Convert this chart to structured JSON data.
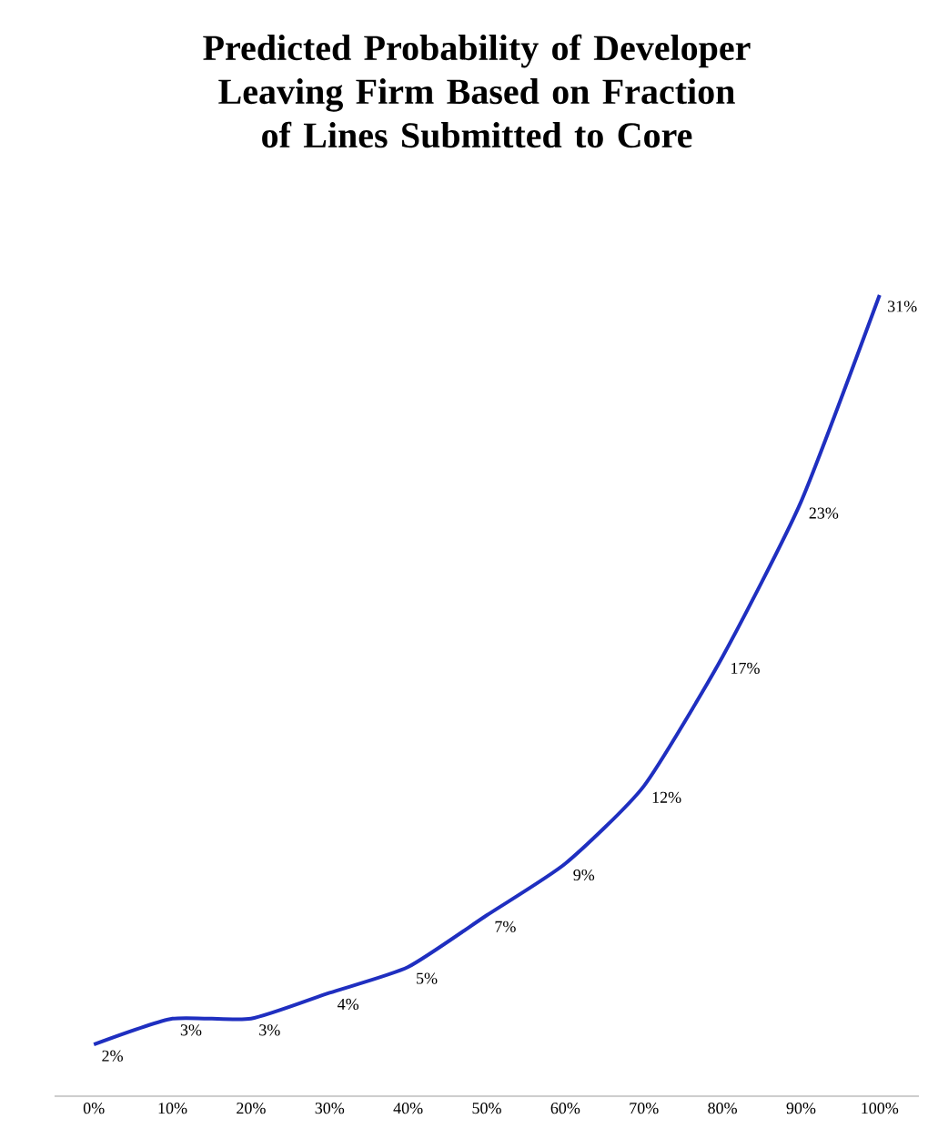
{
  "chart_data": {
    "type": "line",
    "title": "Predicted Probability of Developer Leaving Firm Based on Fraction of Lines Submitted to Core",
    "categories": [
      "0%",
      "10%",
      "20%",
      "30%",
      "40%",
      "50%",
      "60%",
      "70%",
      "80%",
      "90%",
      "100%"
    ],
    "series": [
      {
        "color": "#1f2fc0",
        "values": [
          2,
          3,
          3,
          4,
          5,
          7,
          9,
          12,
          17,
          23,
          31
        ],
        "value_labels": [
          "2%",
          "3%",
          "3%",
          "4%",
          "5%",
          "7%",
          "9%",
          "12%",
          "17%",
          "23%",
          "31%"
        ]
      }
    ],
    "marker": "none",
    "line_style": "solid"
  }
}
